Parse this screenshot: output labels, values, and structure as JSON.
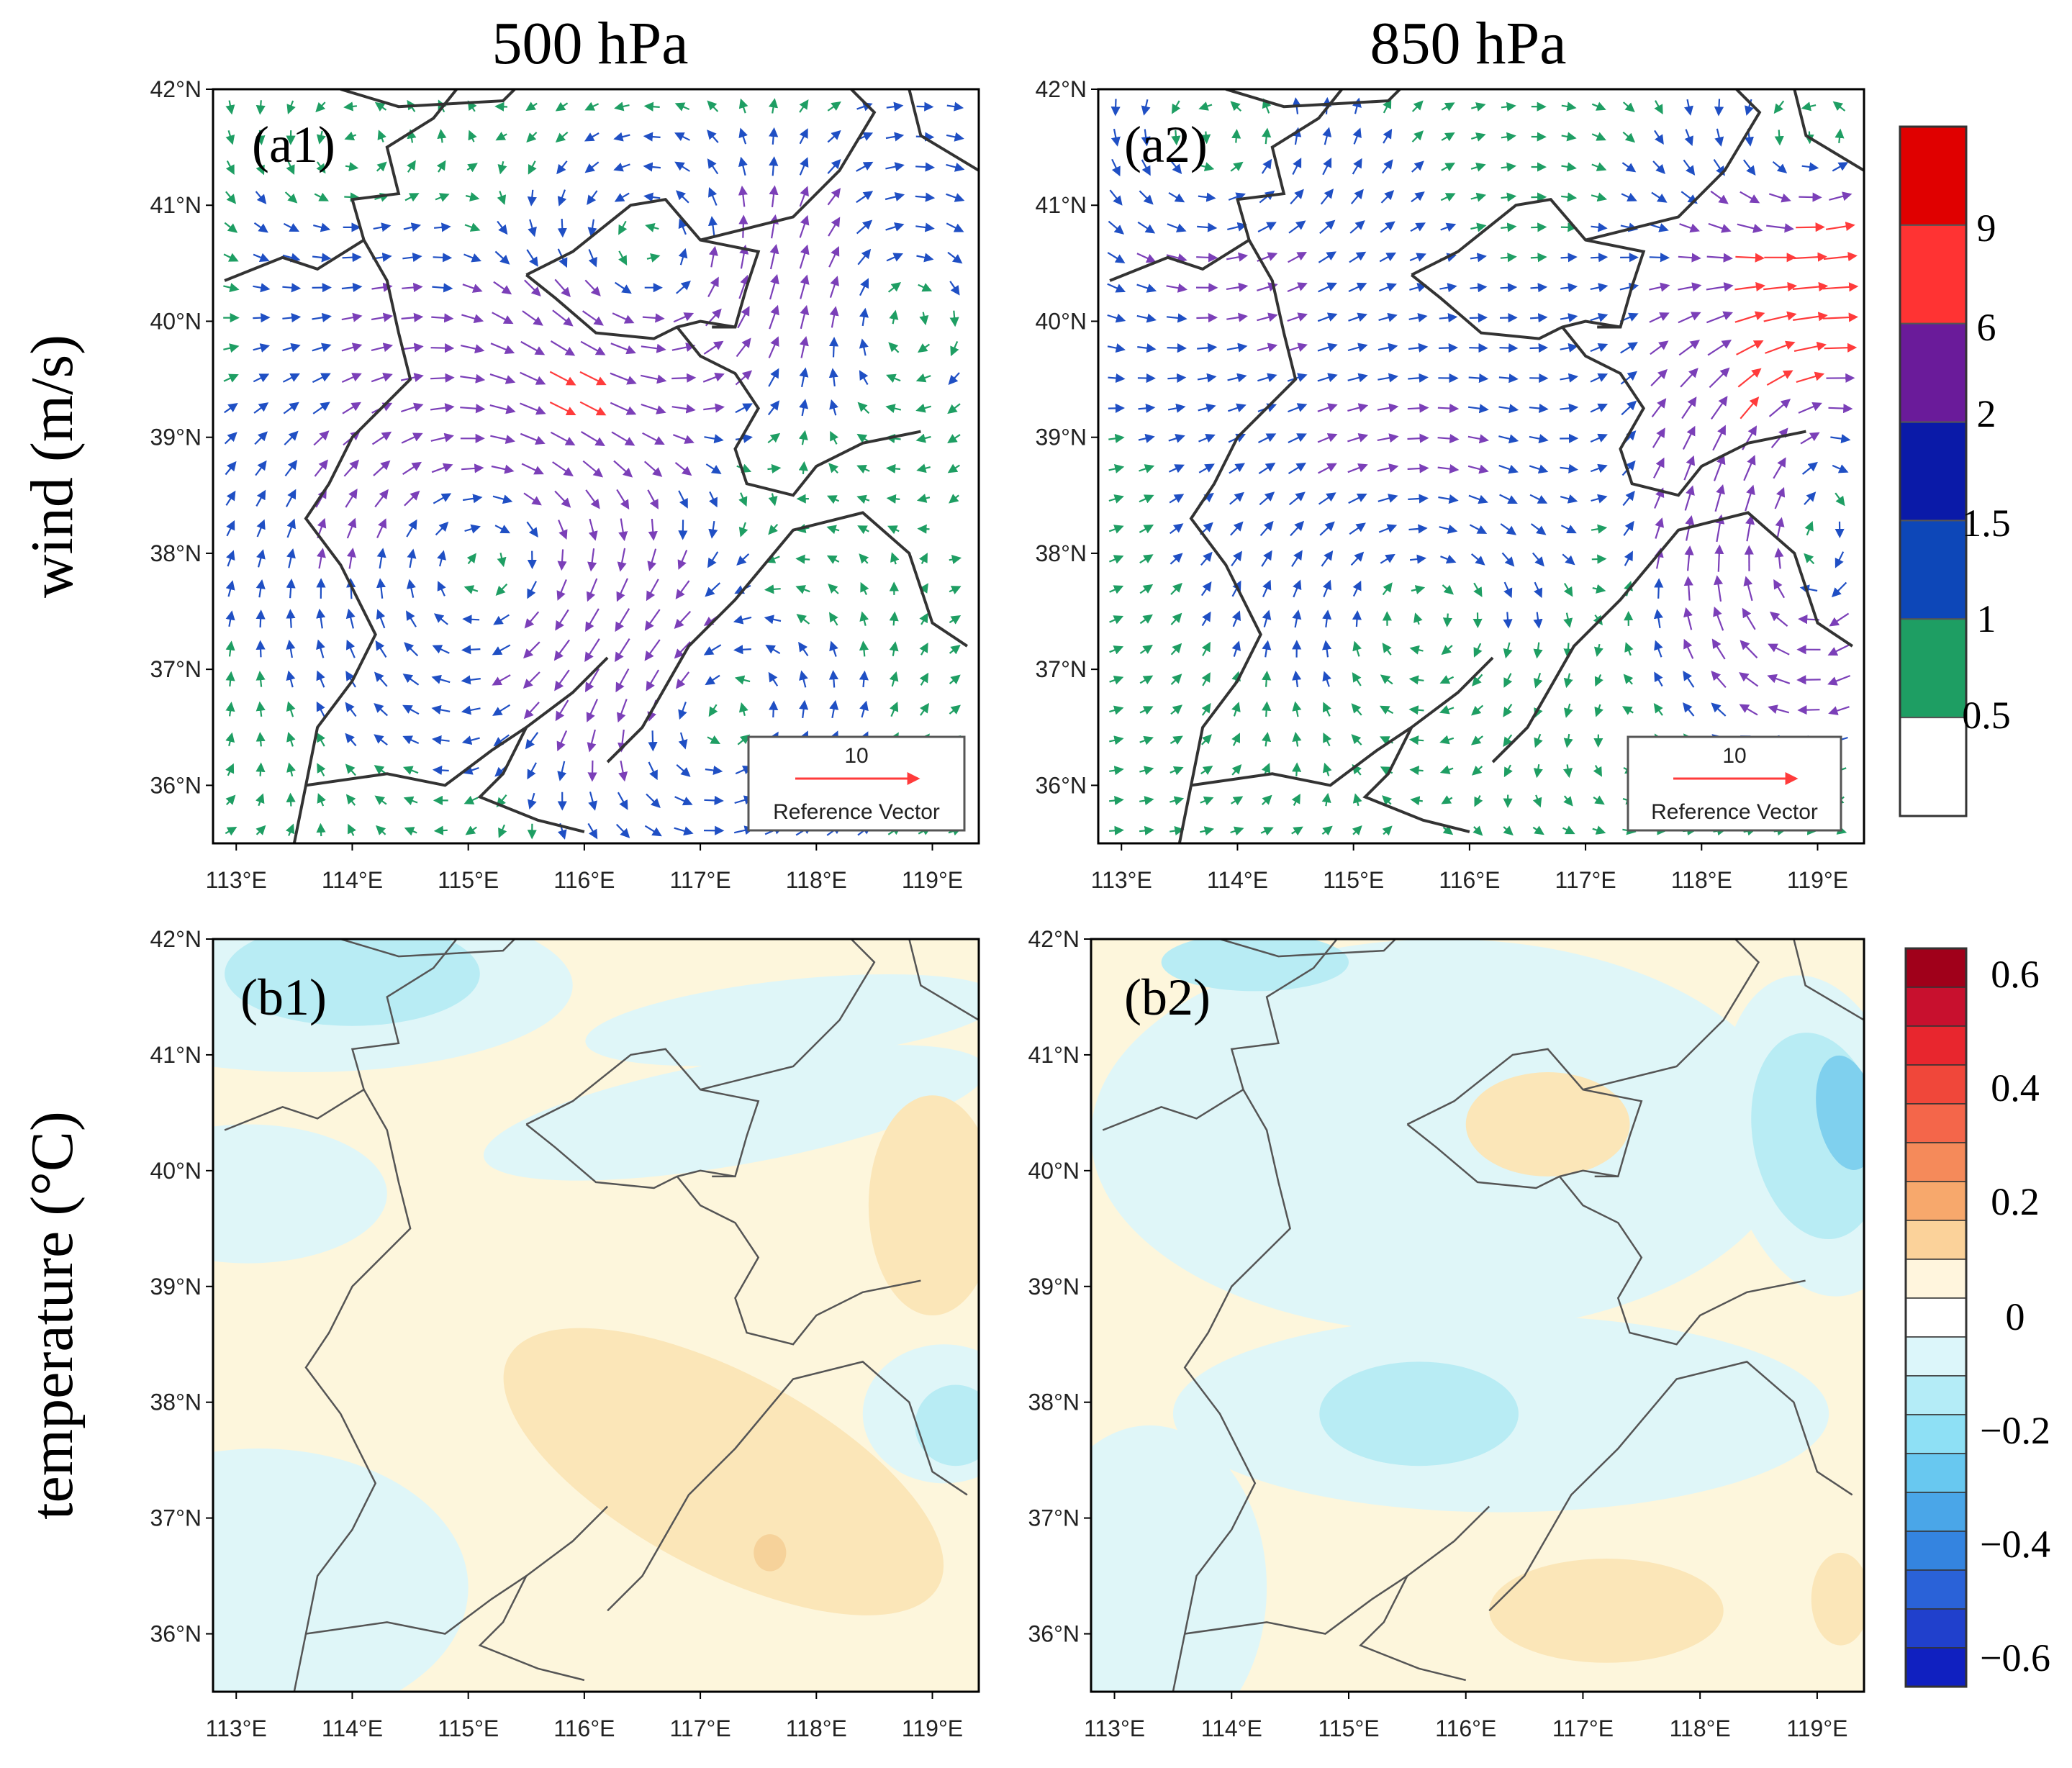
{
  "column_titles": [
    "500 hPa",
    "850 hPa"
  ],
  "row_labels": [
    "wind (m/s)",
    "temperature (°C)"
  ],
  "panels": [
    {
      "id": "a1",
      "label": "(a1)",
      "variable": "wind",
      "level": "500 hPa"
    },
    {
      "id": "a2",
      "label": "(a2)",
      "variable": "wind",
      "level": "850 hPa"
    },
    {
      "id": "b1",
      "label": "(b1)",
      "variable": "temperature",
      "level": "500 hPa"
    },
    {
      "id": "b2",
      "label": "(b2)",
      "variable": "temperature",
      "level": "850 hPa"
    }
  ],
  "map": {
    "lon_range": [
      112.8,
      119.4
    ],
    "lat_range": [
      35.5,
      42
    ],
    "lon_ticks": [
      "113°E",
      "114°E",
      "115°E",
      "116°E",
      "117°E",
      "118°E",
      "119°E"
    ],
    "lat_ticks": [
      "42°N",
      "41°N",
      "40°N",
      "39°N",
      "38°N",
      "37°N",
      "36°N"
    ]
  },
  "reference_vector": {
    "value": "10",
    "label": "Reference Vector"
  },
  "wind_colorbar": {
    "labels": [
      "9",
      "6",
      "2",
      "1.5",
      "1",
      "0.5"
    ],
    "colors": [
      "#e00000",
      "#ff3333",
      "#6a1b9a",
      "#0a1aa8",
      "#0d47b8",
      "#1e9e63",
      "#ffffff"
    ]
  },
  "temperature_colorbar": {
    "labels": [
      "0.6",
      "0.4",
      "0.2",
      "0",
      "−0.2",
      "−0.4",
      "−0.6"
    ],
    "colors": [
      "#a0001a",
      "#c8102e",
      "#e8262e",
      "#f0473a",
      "#f4664a",
      "#f58a5a",
      "#f7a86c",
      "#fbd29a",
      "#fff5dd",
      "#ffffff",
      "#dcf6fa",
      "#b4ecf7",
      "#8ee0f5",
      "#68c8f0",
      "#4aa6e8",
      "#3484e0",
      "#2a62d8",
      "#2040cc",
      "#1020c0"
    ]
  },
  "colors": {
    "ink": "#000000",
    "border": "#3a3a3a",
    "wind_slow": "#1e9e63",
    "wind_low": "#1f4fc4",
    "wind_mid": "#7b3fb8",
    "wind_fast": "#ff3b3b",
    "temp_pos_light": "#fdf6dc",
    "temp_pos": "#fbe6b8",
    "temp_pos_dark": "#f6d29a",
    "temp_neg_light": "#dff6f8",
    "temp_neg": "#b8ecf4",
    "temp_neg_dark": "#7fd0ee"
  }
}
